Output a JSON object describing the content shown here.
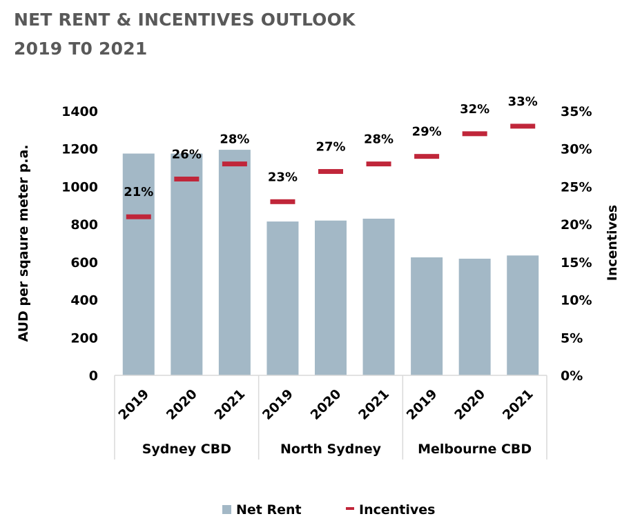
{
  "title": "NET RENT & INCENTIVES OUTLOOK",
  "subtitle": "2019 T0 2021",
  "colors": {
    "net_rent": "#a3b8c6",
    "incentives": "#c0263a",
    "title": "#595959",
    "gridline": "#d9d9d9"
  },
  "chart_data": {
    "type": "bar",
    "groups": [
      "Sydney CBD",
      "North Sydney",
      "Melbourne CBD"
    ],
    "categories": [
      "2019",
      "2020",
      "2021",
      "2019",
      "2020",
      "2021",
      "2019",
      "2020",
      "2021"
    ],
    "series": [
      {
        "name": "Net Rent",
        "type": "bar",
        "axis": "left",
        "values": [
          1175,
          1175,
          1195,
          815,
          820,
          830,
          625,
          618,
          635
        ]
      },
      {
        "name": "Incentives",
        "type": "marker",
        "axis": "right",
        "values": [
          0.21,
          0.26,
          0.28,
          0.23,
          0.27,
          0.28,
          0.29,
          0.32,
          0.33
        ],
        "labels": [
          "21%",
          "26%",
          "28%",
          "23%",
          "27%",
          "28%",
          "29%",
          "32%",
          "33%"
        ]
      }
    ],
    "y_left": {
      "label": "AUD per sqaure meter p.a.",
      "min": 0,
      "max": 1400,
      "ticks": [
        "0",
        "200",
        "400",
        "600",
        "800",
        "1000",
        "1200",
        "1400"
      ]
    },
    "y_right": {
      "label": "Incentives",
      "min": 0,
      "max": 0.35,
      "ticks": [
        "0%",
        "5%",
        "10%",
        "15%",
        "20%",
        "25%",
        "30%",
        "35%"
      ]
    },
    "legend": {
      "position": "bottom",
      "items": [
        "Net Rent",
        "Incentives"
      ]
    },
    "grid": false
  }
}
